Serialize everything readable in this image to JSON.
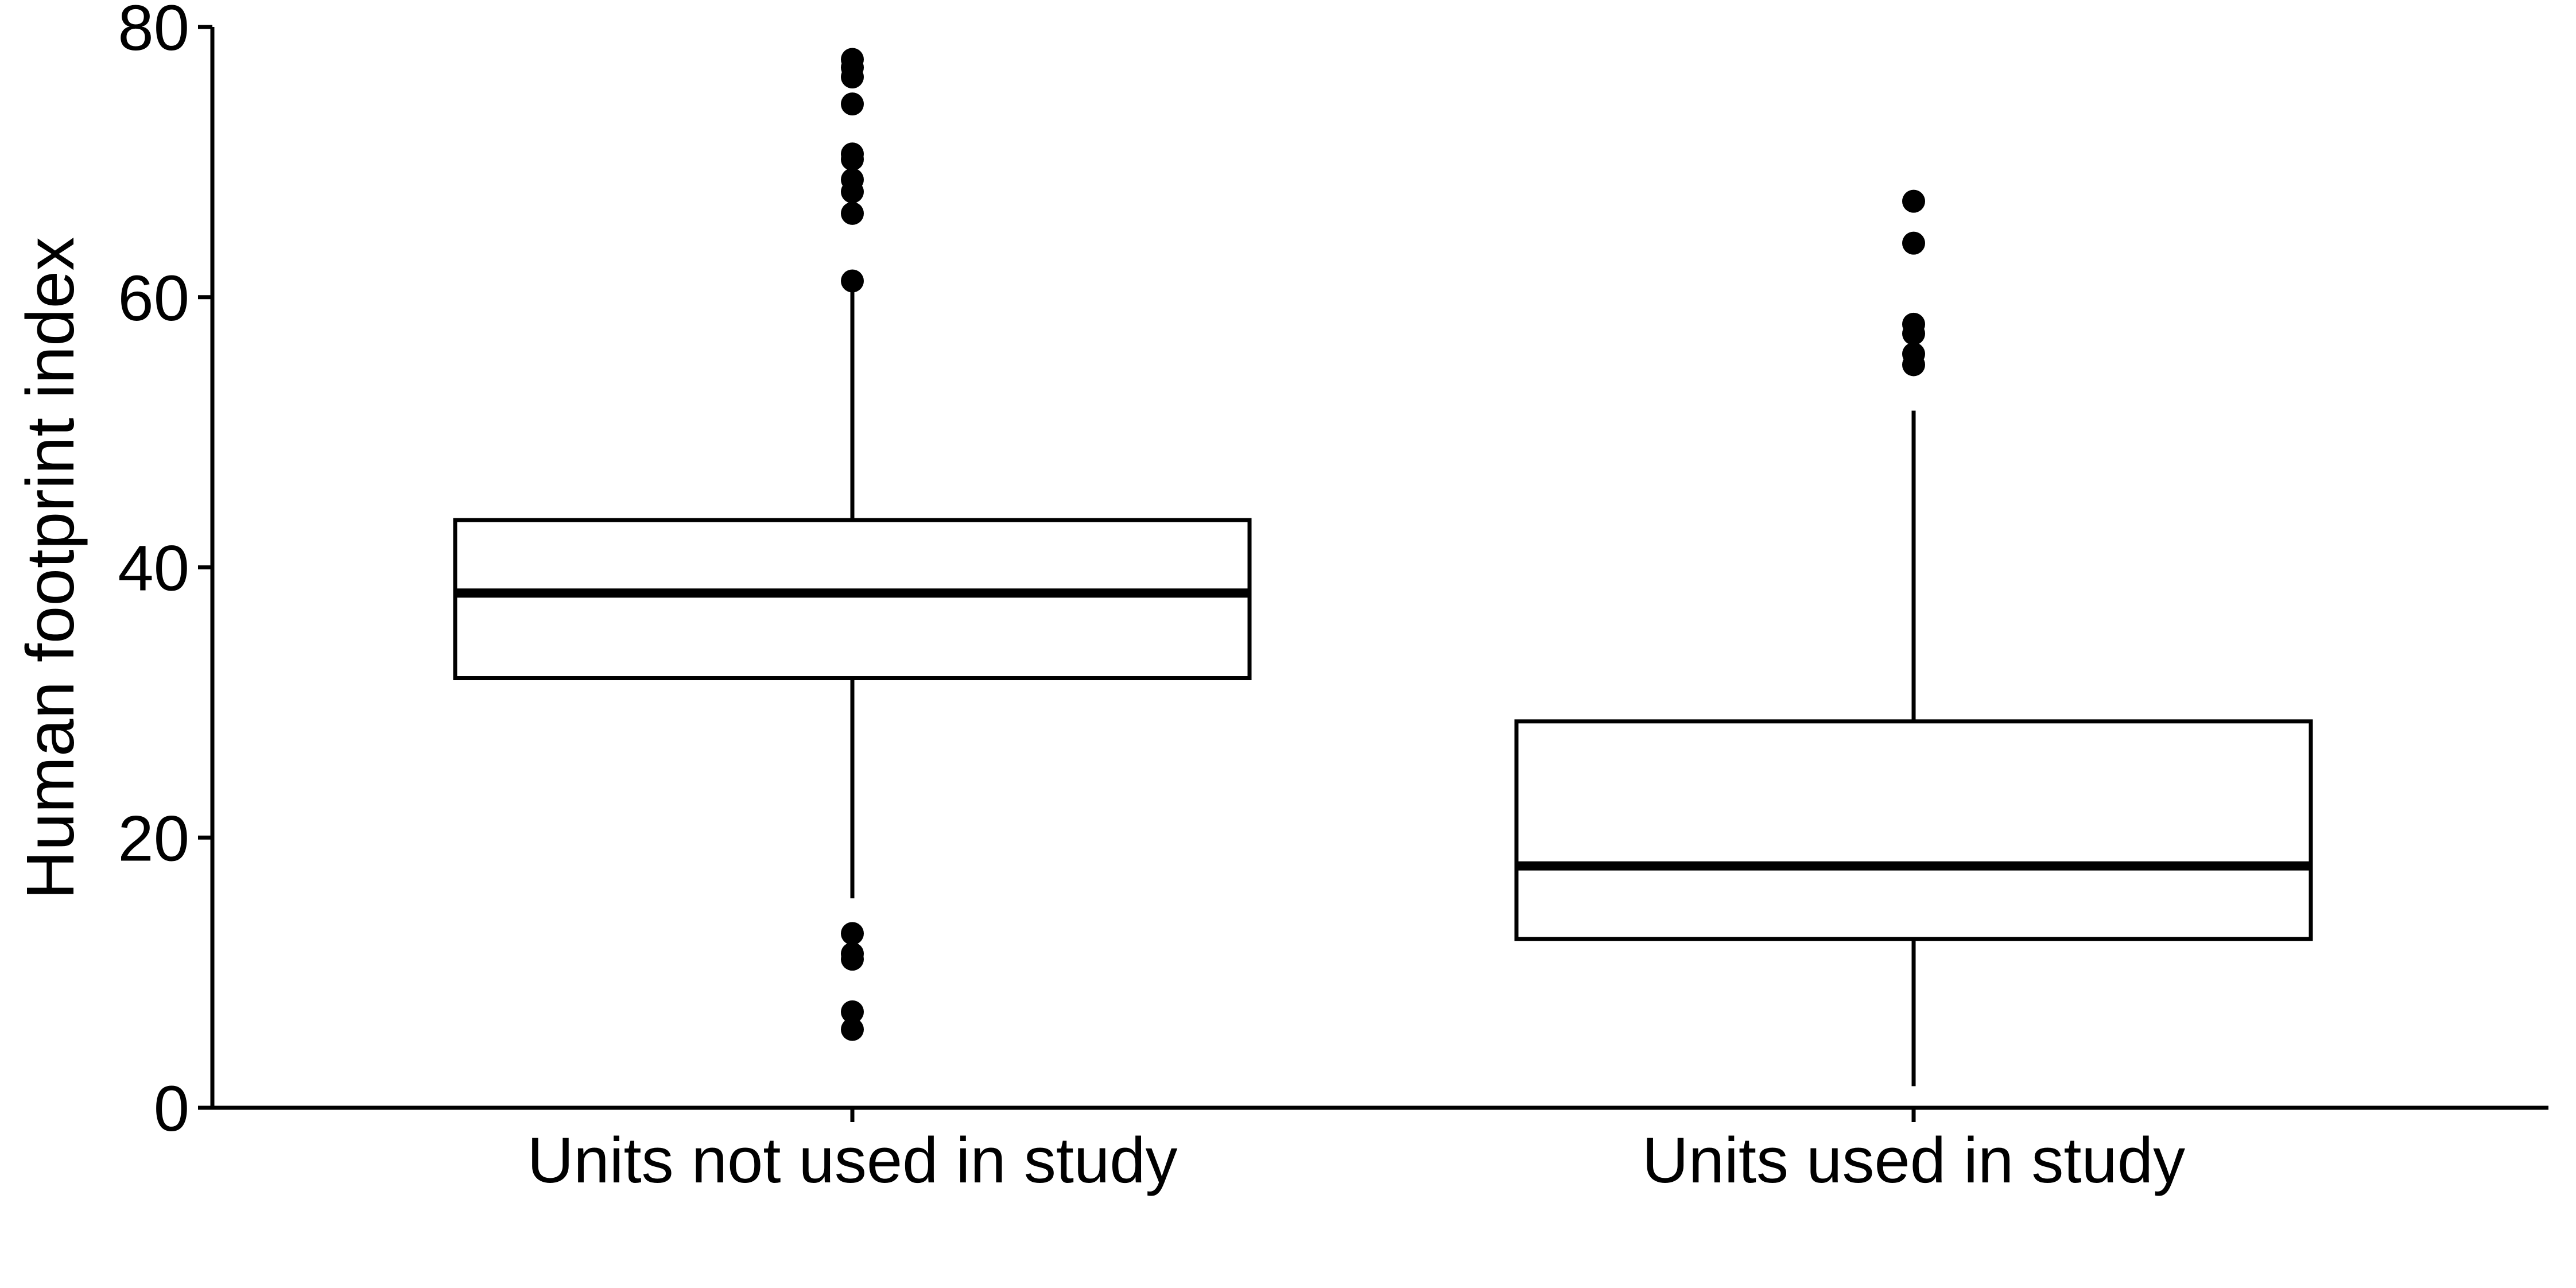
{
  "chart_data": {
    "type": "box",
    "ylabel": "Human footprint index",
    "xlabel": "",
    "ylim": [
      0,
      80
    ],
    "yticks": [
      0,
      20,
      40,
      60,
      80
    ],
    "grid": false,
    "legend": "none",
    "colors": {
      "ink": "#000000",
      "box_fill": "#ffffff"
    },
    "categories": [
      "Units not used in study",
      "Units used in study"
    ],
    "boxes": [
      {
        "category": "Units not used in study",
        "whisker_low": 15.5,
        "q1": 31.8,
        "median": 38.1,
        "q3": 43.5,
        "whisker_high": 61.0,
        "outliers": [
          5.8,
          7.1,
          11.0,
          11.4,
          12.9,
          61.2,
          66.2,
          67.8,
          68.7,
          70.2,
          70.6,
          74.3,
          76.3,
          77.0,
          77.6
        ]
      },
      {
        "category": "Units used in study",
        "whisker_low": 1.6,
        "q1": 12.5,
        "median": 17.9,
        "q3": 28.6,
        "whisker_high": 51.6,
        "outliers": [
          55.0,
          55.8,
          57.3,
          58.0,
          64.0,
          67.1
        ]
      }
    ]
  }
}
